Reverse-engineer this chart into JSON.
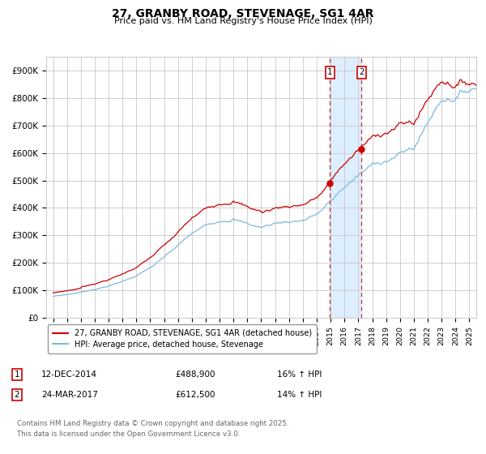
{
  "title1": "27, GRANBY ROAD, STEVENAGE, SG1 4AR",
  "title2": "Price paid vs. HM Land Registry's House Price Index (HPI)",
  "legend_property": "27, GRANBY ROAD, STEVENAGE, SG1 4AR (detached house)",
  "legend_hpi": "HPI: Average price, detached house, Stevenage",
  "property_color": "#cc0000",
  "hpi_color": "#7eb9e0",
  "transaction1_date": "12-DEC-2014",
  "transaction1_price": 488900,
  "transaction1_note": "16% ↑ HPI",
  "transaction2_date": "24-MAR-2017",
  "transaction2_price": 612500,
  "transaction2_note": "14% ↑ HPI",
  "transaction1_year": 2014.95,
  "transaction2_year": 2017.23,
  "ylabel_vals": [
    0,
    100000,
    200000,
    300000,
    400000,
    500000,
    600000,
    700000,
    800000,
    900000
  ],
  "ylabel_labels": [
    "£0",
    "£100K",
    "£200K",
    "£300K",
    "£400K",
    "£500K",
    "£600K",
    "£700K",
    "£800K",
    "£900K"
  ],
  "xmin": 1994.5,
  "xmax": 2025.5,
  "ymin": 0,
  "ymax": 950000,
  "footer": "Contains HM Land Registry data © Crown copyright and database right 2025.\nThis data is licensed under the Open Government Licence v3.0.",
  "background_color": "#ffffff",
  "grid_color": "#c8c8c8",
  "shade_color": "#ddeeff"
}
